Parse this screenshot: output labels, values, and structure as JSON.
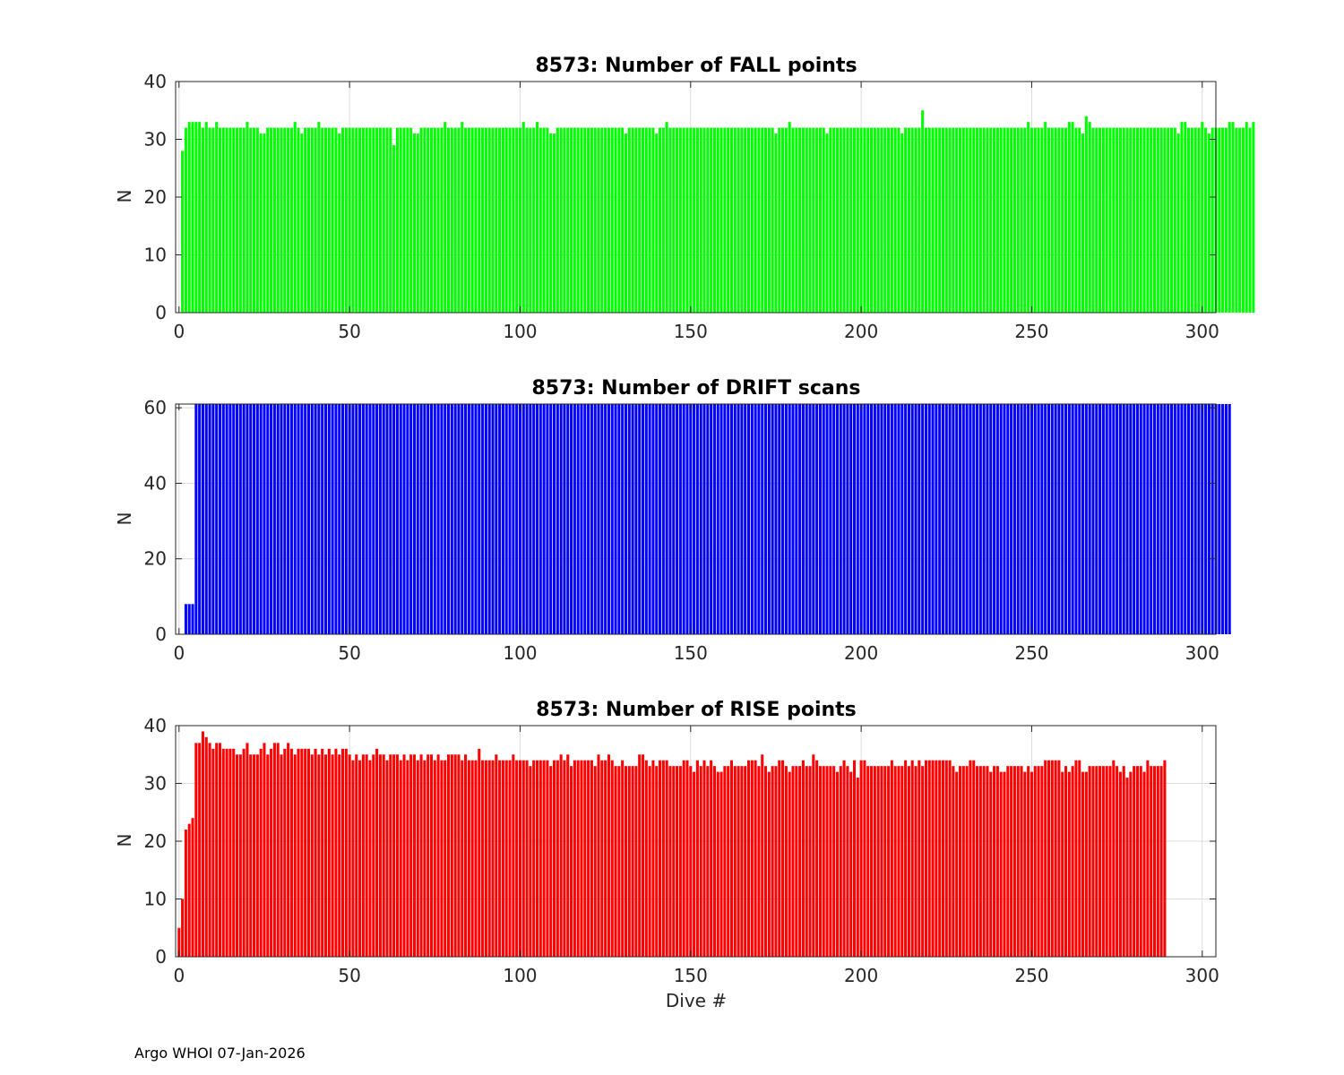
{
  "footer": {
    "note": "Argo WHOI 07-Jan-2026"
  },
  "chart_data": [
    {
      "type": "bar",
      "title": "8573: Number of FALL points",
      "xlabel": "",
      "ylabel": "N",
      "xlim": [
        -1,
        304
      ],
      "ylim": [
        0,
        40
      ],
      "xticks": [
        0,
        50,
        100,
        150,
        200,
        250,
        300
      ],
      "yticks": [
        0,
        10,
        20,
        30,
        40
      ],
      "grid": true,
      "color": "#00ff00",
      "series": [
        {
          "x_start": 1,
          "values": [
            28,
            32,
            33,
            33,
            33,
            33,
            32,
            33,
            32,
            32,
            33,
            32,
            32,
            32,
            32,
            32,
            32,
            32,
            32,
            33,
            32,
            32,
            32,
            31,
            31,
            32,
            32,
            32,
            32,
            32,
            32,
            32,
            32,
            33,
            32,
            31,
            32,
            32,
            32,
            32,
            33,
            32,
            32,
            32,
            32,
            32,
            31,
            32,
            32,
            32,
            32,
            32,
            32,
            32,
            32,
            32,
            32,
            32,
            32,
            32,
            32,
            32,
            29,
            32,
            32,
            32,
            32,
            32,
            31,
            31,
            32,
            32,
            32,
            32,
            32,
            32,
            32,
            33,
            32,
            32,
            32,
            32,
            33,
            32,
            32,
            32,
            32,
            32,
            32,
            32,
            32,
            32,
            32,
            32,
            32,
            32,
            32,
            32,
            32,
            32,
            33,
            32,
            32,
            32,
            33,
            32,
            32,
            32,
            31,
            31,
            32,
            32,
            32,
            32,
            32,
            32,
            32,
            32,
            32,
            32,
            32,
            32,
            32,
            32,
            32,
            32,
            32,
            32,
            32,
            32,
            31,
            32,
            32,
            32,
            32,
            32,
            32,
            32,
            32,
            31,
            32,
            32,
            33,
            32,
            32,
            32,
            32,
            32,
            32,
            32,
            32,
            32,
            32,
            32,
            32,
            32,
            32,
            32,
            32,
            32,
            32,
            32,
            32,
            32,
            32,
            32,
            32,
            32,
            32,
            32,
            32,
            32,
            32,
            32,
            31,
            32,
            32,
            32,
            33,
            32,
            32,
            32,
            32,
            32,
            32,
            32,
            32,
            32,
            32,
            31,
            32,
            32,
            32,
            32,
            32,
            32,
            32,
            32,
            32,
            32,
            32,
            32,
            32,
            32,
            32,
            32,
            32,
            32,
            32,
            32,
            32,
            31,
            32,
            32,
            32,
            32,
            32,
            35,
            32,
            32,
            32,
            32,
            32,
            32,
            32,
            32,
            32,
            32,
            32,
            32,
            32,
            32,
            32,
            32,
            32,
            32,
            32,
            32,
            32,
            32,
            32,
            32,
            32,
            32,
            32,
            32,
            32,
            32,
            33,
            32,
            32,
            32,
            32,
            33,
            32,
            32,
            32,
            32,
            32,
            32,
            33,
            33,
            32,
            32,
            31,
            34,
            33,
            32,
            32,
            32,
            32,
            32,
            32,
            32,
            32,
            32,
            32,
            32,
            32,
            32,
            32,
            32,
            32,
            32,
            32,
            32,
            32,
            32,
            32,
            32,
            32,
            32,
            31,
            33,
            33,
            32,
            32,
            32,
            32,
            33,
            32,
            31,
            32,
            32,
            32,
            32,
            32,
            33,
            33,
            32,
            32,
            32,
            33,
            32,
            33
          ]
        }
      ]
    },
    {
      "type": "bar",
      "title": "8573: Number of DRIFT scans",
      "xlabel": "",
      "ylabel": "N",
      "xlim": [
        -1,
        304
      ],
      "ylim": [
        0,
        61
      ],
      "xticks": [
        0,
        50,
        100,
        150,
        200,
        250,
        300
      ],
      "yticks": [
        0,
        20,
        40,
        60
      ],
      "grid": true,
      "color": "#0000ff",
      "series": [
        {
          "x_start": 2,
          "values": [
            8,
            8,
            8,
            61,
            61,
            61,
            61,
            61,
            61,
            61,
            61,
            61,
            61,
            61,
            61,
            61,
            61,
            61,
            61,
            61,
            61,
            61,
            61,
            61,
            61,
            61,
            61,
            61,
            61,
            61,
            61,
            61,
            61,
            61,
            61,
            61,
            61,
            61,
            61,
            61,
            61,
            61,
            61,
            61,
            61,
            61,
            61,
            61,
            61,
            61,
            61,
            61,
            61,
            61,
            61,
            61,
            61,
            61,
            61,
            61,
            61,
            61,
            61,
            61,
            61,
            61,
            61,
            61,
            61,
            61,
            61,
            61,
            61,
            61,
            61,
            61,
            61,
            61,
            61,
            61,
            61,
            61,
            61,
            61,
            61,
            61,
            61,
            61,
            61,
            61,
            61,
            61,
            61,
            61,
            61,
            61,
            61,
            61,
            61,
            61,
            61,
            61,
            61,
            61,
            61,
            61,
            61,
            61,
            61,
            61,
            61,
            61,
            61,
            61,
            61,
            61,
            61,
            61,
            61,
            61,
            61,
            61,
            61,
            61,
            61,
            61,
            61,
            61,
            61,
            61,
            61,
            61,
            61,
            61,
            61,
            61,
            61,
            61,
            61,
            61,
            61,
            61,
            61,
            61,
            61,
            61,
            61,
            61,
            61,
            61,
            61,
            61,
            61,
            61,
            61,
            61,
            61,
            61,
            61,
            61,
            61,
            61,
            61,
            61,
            61,
            61,
            61,
            61,
            61,
            61,
            61,
            61,
            61,
            61,
            61,
            61,
            61,
            61,
            61,
            61,
            61,
            61,
            61,
            61,
            61,
            61,
            61,
            61,
            61,
            61,
            61,
            61,
            61,
            61,
            61,
            61,
            61,
            61,
            61,
            61,
            61,
            61,
            61,
            61,
            61,
            61,
            61,
            61,
            61,
            61,
            61,
            61,
            61,
            61,
            61,
            61,
            61,
            61,
            61,
            61,
            61,
            61,
            61,
            61,
            61,
            61,
            61,
            61,
            61,
            61,
            61,
            61,
            61,
            61,
            61,
            61,
            61,
            61,
            61,
            61,
            61,
            61,
            61,
            61,
            61,
            61,
            61,
            61,
            61,
            61,
            61,
            61,
            61,
            61,
            61,
            61,
            61,
            61,
            61,
            61,
            61,
            61,
            61,
            61,
            61,
            61,
            61,
            61,
            61,
            61,
            61,
            61,
            61,
            61,
            61,
            61,
            61,
            61,
            61,
            61,
            61,
            61,
            61,
            61,
            61,
            61,
            61,
            61,
            61,
            61,
            61,
            61,
            61,
            61,
            61,
            61,
            61,
            61,
            61,
            61,
            61,
            61,
            61,
            61,
            61,
            61,
            61
          ]
        }
      ]
    },
    {
      "type": "bar",
      "title": "8573: Number of RISE points",
      "xlabel": "Dive #",
      "ylabel": "N",
      "xlim": [
        -1,
        304
      ],
      "ylim": [
        0,
        40
      ],
      "xticks": [
        0,
        50,
        100,
        150,
        200,
        250,
        300
      ],
      "yticks": [
        0,
        10,
        20,
        30,
        40
      ],
      "grid": true,
      "color": "#ff0000",
      "series": [
        {
          "x_start": 0,
          "values": [
            5,
            10,
            22,
            23,
            24,
            37,
            37,
            39,
            38,
            37,
            36,
            37,
            37,
            36,
            36,
            36,
            36,
            35,
            35,
            36,
            37,
            35,
            35,
            35,
            36,
            37,
            35,
            36,
            37,
            37,
            35,
            36,
            37,
            36,
            35,
            36,
            36,
            36,
            36,
            35,
            36,
            35,
            36,
            35,
            36,
            35,
            36,
            35,
            36,
            36,
            35,
            34,
            35,
            34,
            35,
            35,
            34,
            35,
            36,
            35,
            35,
            34,
            35,
            35,
            35,
            34,
            35,
            34,
            35,
            35,
            34,
            35,
            34,
            35,
            35,
            34,
            35,
            34,
            34,
            35,
            35,
            35,
            35,
            34,
            35,
            34,
            34,
            34,
            36,
            34,
            34,
            34,
            34,
            35,
            34,
            34,
            34,
            34,
            35,
            34,
            34,
            34,
            34,
            33,
            34,
            34,
            34,
            34,
            34,
            33,
            34,
            34,
            35,
            34,
            35,
            33,
            34,
            34,
            34,
            34,
            34,
            34,
            33,
            35,
            34,
            34,
            35,
            34,
            33,
            33,
            34,
            33,
            33,
            33,
            33,
            35,
            35,
            34,
            33,
            34,
            33,
            34,
            34,
            34,
            33,
            33,
            33,
            33,
            34,
            34,
            33,
            32,
            34,
            33,
            34,
            33,
            34,
            33,
            32,
            32,
            33,
            33,
            34,
            33,
            33,
            33,
            33,
            34,
            34,
            34,
            33,
            35,
            33,
            32,
            33,
            33,
            34,
            34,
            33,
            32,
            33,
            33,
            33,
            34,
            33,
            33,
            35,
            34,
            33,
            33,
            33,
            33,
            33,
            32,
            33,
            34,
            33,
            32,
            34,
            31,
            34,
            34,
            33,
            33,
            33,
            33,
            33,
            33,
            33,
            34,
            33,
            33,
            33,
            34,
            33,
            34,
            33,
            34,
            33,
            34,
            34,
            34,
            34,
            34,
            34,
            34,
            34,
            33,
            32,
            33,
            33,
            33,
            34,
            34,
            33,
            33,
            33,
            33,
            32,
            33,
            33,
            32,
            32,
            33,
            33,
            33,
            33,
            33,
            32,
            33,
            32,
            33,
            33,
            33,
            34,
            34,
            34,
            34,
            34,
            32,
            33,
            32,
            33,
            34,
            34,
            32,
            32,
            33,
            33,
            33,
            33,
            33,
            33,
            33,
            34,
            33,
            32,
            33,
            31,
            32,
            33,
            33,
            33,
            32,
            34,
            33,
            33,
            33,
            33,
            34
          ]
        }
      ]
    }
  ]
}
